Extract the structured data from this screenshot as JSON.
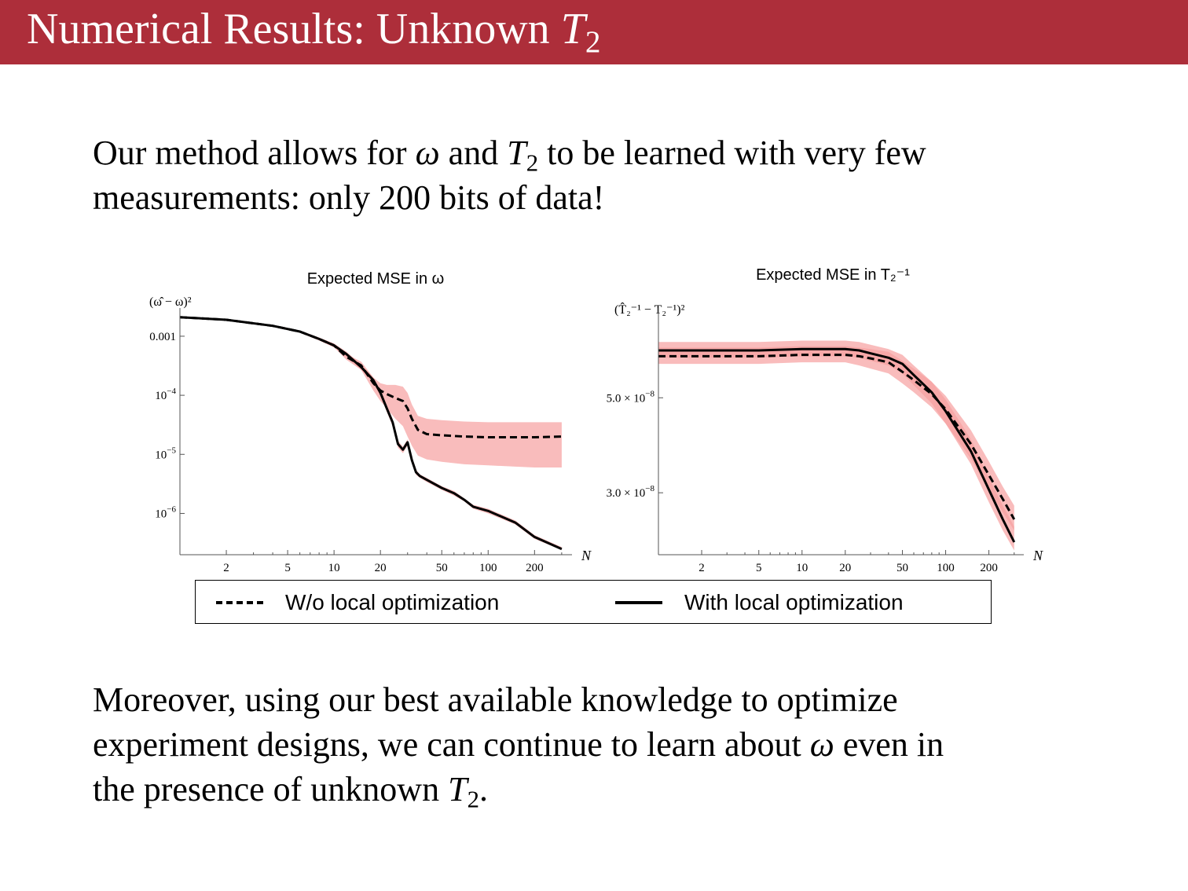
{
  "slide": {
    "title_text": "Numerical Results: Unknown ",
    "title_var": "T",
    "title_sub": "2"
  },
  "para1": {
    "p1": "Our method allows for ",
    "omega": "ω",
    "p2": " and ",
    "T": "T",
    "sub": "2",
    "p3": " to be learned with very few",
    "line2": "measurements: only 200 bits of data!"
  },
  "para2": {
    "line1": "Moreover, using our best available knowledge to optimize",
    "l2a": "experiment designs, we can continue to learn about ",
    "omega": "ω",
    "l2b": " even in",
    "l3a": "the presence of unknown ",
    "T": "T",
    "sub": "2",
    "l3b": "."
  },
  "legend": {
    "dashed_label": "W/o local optimization",
    "solid_label": "With local optimization"
  },
  "colors": {
    "header": "#ad2e3a",
    "band": "#f7a0a0"
  },
  "chart_data": [
    {
      "type": "line",
      "title": "Expected MSE in ω",
      "ylabel": "(ω̂ − ω)²",
      "xlabel": "N",
      "x_scale": "log",
      "y_scale": "log",
      "xlim": [
        1,
        350
      ],
      "ylim": [
        2e-07,
        0.0025
      ],
      "x_ticks": [
        2,
        5,
        10,
        20,
        50,
        100,
        200
      ],
      "y_ticks": [
        {
          "value": 0.001,
          "base": "0.001",
          "exp": ""
        },
        {
          "value": 0.0001,
          "base": "10",
          "exp": "−4"
        },
        {
          "value": 1e-05,
          "base": "10",
          "exp": "−5"
        },
        {
          "value": 1e-06,
          "base": "10",
          "exp": "−6"
        }
      ],
      "series": [
        {
          "name": "W/o local optimization",
          "style": "dashed",
          "x": [
            1,
            2,
            4,
            6,
            8,
            10,
            12,
            15,
            18,
            20,
            22,
            25,
            28,
            30,
            32,
            35,
            40,
            50,
            70,
            100,
            150,
            200,
            300
          ],
          "y": [
            0.0021,
            0.0019,
            0.0015,
            0.0012,
            0.0009,
            0.0007,
            0.00045,
            0.00032,
            0.00016,
            0.00012,
            0.000105,
            9e-05,
            8e-05,
            6e-05,
            4e-05,
            2.6e-05,
            2.2e-05,
            2.1e-05,
            2e-05,
            1.95e-05,
            1.95e-05,
            1.95e-05,
            2e-05
          ],
          "band_low": [
            0.00205,
            0.00185,
            0.00145,
            0.00115,
            0.00085,
            0.00065,
            0.0004,
            0.00027,
            0.00012,
            8e-05,
            6e-05,
            4e-05,
            3e-05,
            2e-05,
            1.4e-05,
            9.5e-06,
            8.2e-06,
            7.5e-06,
            6.8e-06,
            6.5e-06,
            6.2e-06,
            6e-06,
            6e-06
          ],
          "band_high": [
            0.00215,
            0.00195,
            0.00155,
            0.00125,
            0.00095,
            0.00075,
            0.0005,
            0.00037,
            0.0002,
            0.00016,
            0.00015,
            0.00015,
            0.00014,
            0.00011,
            7e-05,
            4.5e-05,
            4e-05,
            3.8e-05,
            3.6e-05,
            3.5e-05,
            3.5e-05,
            3.5e-05,
            3.5e-05
          ]
        },
        {
          "name": "With local optimization",
          "style": "solid",
          "x": [
            1,
            2,
            4,
            6,
            8,
            10,
            12,
            15,
            18,
            20,
            22,
            24,
            26,
            28,
            30,
            32,
            34,
            36,
            40,
            50,
            60,
            70,
            80,
            100,
            150,
            200,
            300
          ],
          "y": [
            0.0021,
            0.0019,
            0.0015,
            0.0012,
            0.0009,
            0.0007,
            0.0005,
            0.0003,
            0.00018,
            0.00011,
            6e-05,
            3.5e-05,
            1.5e-05,
            1.2e-05,
            1.6e-05,
            8e-06,
            5e-06,
            4.3e-06,
            3.7e-06,
            2.7e-06,
            2.2e-06,
            1.7e-06,
            1.3e-06,
            1.1e-06,
            7e-07,
            4e-07,
            2.5e-07
          ],
          "band_low": [
            0.00205,
            0.00185,
            0.00145,
            0.00115,
            0.00085,
            0.00065,
            0.00045,
            0.00027,
            0.00016,
            0.0001,
            5.2e-05,
            3e-05,
            1.3e-05,
            1.05e-05,
            1.4e-05,
            7e-06,
            4.5e-06,
            4e-06,
            3.4e-06,
            2.5e-06,
            2e-06,
            1.6e-06,
            1.2e-06,
            1e-06,
            6.5e-07,
            3.7e-07,
            2.4e-07
          ],
          "band_high": [
            0.00215,
            0.00195,
            0.00155,
            0.00125,
            0.00095,
            0.00075,
            0.00055,
            0.00033,
            0.0002,
            0.00012,
            6.8e-05,
            4e-05,
            1.7e-05,
            1.35e-05,
            1.8e-05,
            8.9e-06,
            5.5e-06,
            4.6e-06,
            4e-06,
            2.9e-06,
            2.4e-06,
            1.8e-06,
            1.4e-06,
            1.2e-06,
            7.6e-07,
            4.3e-07,
            2.7e-07
          ]
        }
      ]
    },
    {
      "type": "line",
      "title": "Expected MSE in T₂⁻¹",
      "ylabel": "(T̂₂⁻¹ − T₂⁻¹)²",
      "xlabel": "N",
      "x_scale": "log",
      "y_scale": "log",
      "xlim": [
        1,
        350
      ],
      "ylim": [
        2.15e-08,
        7.9e-08
      ],
      "x_ticks": [
        2,
        5,
        10,
        20,
        50,
        100,
        200
      ],
      "y_ticks": [
        {
          "value": 5e-08,
          "base": "5.0 × 10",
          "exp": "−8"
        },
        {
          "value": 3e-08,
          "base": "3.0 × 10",
          "exp": "−8"
        }
      ],
      "series": [
        {
          "name": "W/o local optimization",
          "style": "dashed",
          "x": [
            1,
            5,
            10,
            20,
            25,
            30,
            40,
            50,
            60,
            80,
            100,
            150,
            200,
            250,
            300
          ],
          "y": [
            6.25e-08,
            6.25e-08,
            6.3e-08,
            6.3e-08,
            6.25e-08,
            6.18e-08,
            6.05e-08,
            5.75e-08,
            5.5e-08,
            5.1e-08,
            4.7e-08,
            3.9e-08,
            3.3e-08,
            2.9e-08,
            2.6e-08
          ],
          "band_low": [
            6e-08,
            6e-08,
            6.05e-08,
            6.05e-08,
            5.95e-08,
            5.85e-08,
            5.7e-08,
            5.4e-08,
            5.15e-08,
            4.75e-08,
            4.35e-08,
            3.6e-08,
            3.05e-08,
            2.7e-08,
            2.45e-08
          ],
          "band_high": [
            6.55e-08,
            6.55e-08,
            6.6e-08,
            6.6e-08,
            6.55e-08,
            6.5e-08,
            6.4e-08,
            6.1e-08,
            5.85e-08,
            5.45e-08,
            5.05e-08,
            4.2e-08,
            3.55e-08,
            3.1e-08,
            2.8e-08
          ]
        },
        {
          "name": "With local optimization",
          "style": "solid",
          "x": [
            1,
            5,
            10,
            20,
            25,
            30,
            40,
            50,
            60,
            80,
            100,
            150,
            200,
            250,
            300
          ],
          "y": [
            6.45e-08,
            6.45e-08,
            6.5e-08,
            6.5e-08,
            6.45e-08,
            6.35e-08,
            6.2e-08,
            6e-08,
            5.65e-08,
            5.15e-08,
            4.65e-08,
            3.75e-08,
            3.05e-08,
            2.6e-08,
            2.3e-08
          ],
          "band_low": [
            6.2e-08,
            6.2e-08,
            6.25e-08,
            6.25e-08,
            6.2e-08,
            6.1e-08,
            5.95e-08,
            5.7e-08,
            5.35e-08,
            4.85e-08,
            4.35e-08,
            3.5e-08,
            2.85e-08,
            2.45e-08,
            2.2e-08
          ],
          "band_high": [
            6.75e-08,
            6.75e-08,
            6.8e-08,
            6.8e-08,
            6.75e-08,
            6.65e-08,
            6.5e-08,
            6.3e-08,
            5.95e-08,
            5.45e-08,
            4.95e-08,
            4e-08,
            3.25e-08,
            2.8e-08,
            2.5e-08
          ]
        }
      ]
    }
  ]
}
